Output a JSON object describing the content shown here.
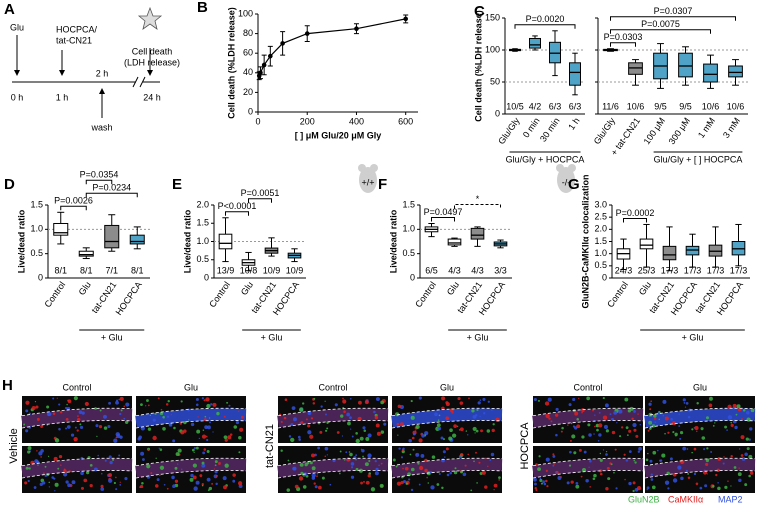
{
  "diagram": {
    "panel": "A",
    "glu": "Glu",
    "treatment": [
      "HOCPCA/",
      "tat-CN21"
    ],
    "wash": "wash",
    "outcome": [
      "Cell death",
      "(LDH release)"
    ],
    "times": [
      "0 h",
      "1 h",
      "2 h",
      "24 h"
    ]
  },
  "chart_data": [
    {
      "type": "line",
      "panel": "B",
      "xlabel": "[ ] μM Glu/20 μM Gly",
      "ylabel": "Cell death (%LDH release)",
      "x": [
        5,
        10,
        25,
        50,
        100,
        200,
        400,
        600
      ],
      "values": [
        37,
        40,
        48,
        57,
        70,
        80,
        85,
        95
      ],
      "errors": [
        4,
        6,
        10,
        10,
        12,
        8,
        5,
        4
      ],
      "color": "#000000",
      "xlim": [
        0,
        650
      ],
      "xticks": [
        0,
        200,
        400,
        600
      ],
      "ylim": [
        0,
        100
      ],
      "yticks": [
        0,
        20,
        40,
        60,
        80,
        100
      ]
    },
    {
      "type": "box",
      "panel": "C",
      "ylabel": "Cell death (%LDH release)",
      "categories": [
        "Glu/Gly",
        "0 min",
        "30 min",
        "1 h"
      ],
      "n_labels": [
        "10/5",
        "4/2",
        "6/3",
        "6/3"
      ],
      "boxes": [
        {
          "min": 98,
          "q1": 99,
          "median": 100,
          "q3": 101,
          "max": 102
        },
        {
          "min": 100,
          "q1": 103,
          "median": 108,
          "q3": 118,
          "max": 122
        },
        {
          "min": 60,
          "q1": 80,
          "median": 95,
          "q3": 112,
          "max": 130
        },
        {
          "min": 30,
          "q1": 45,
          "median": 65,
          "q3": 80,
          "max": 95
        }
      ],
      "box_colors": [
        "#ffffff",
        "#4fa3c7",
        "#4fa3c7",
        "#4fa3c7"
      ],
      "ylim": [
        0,
        150
      ],
      "yticks": [
        0,
        50,
        100,
        150
      ],
      "ref_lines": [
        50,
        100
      ],
      "tick_labels": true,
      "group_label": "Glu/Gly + HOCPCA",
      "group_span": [
        0,
        3
      ],
      "annotations": [
        {
          "label": "P=0.0020",
          "pair": [
            0,
            3
          ],
          "dashed": false
        }
      ]
    },
    {
      "type": "box",
      "categories": [
        "Glu/Gly",
        "+ tat-CN21",
        "100 μM",
        "300 μM",
        "1 mM",
        "3 mM"
      ],
      "n_labels": [
        "11/6",
        "10/6",
        "9/5",
        "9/5",
        "10/6",
        "10/6"
      ],
      "boxes": [
        {
          "min": 98,
          "q1": 99,
          "median": 100,
          "q3": 101,
          "max": 102
        },
        {
          "min": 45,
          "q1": 62,
          "median": 72,
          "q3": 80,
          "max": 85
        },
        {
          "min": 40,
          "q1": 55,
          "median": 75,
          "q3": 95,
          "max": 110
        },
        {
          "min": 45,
          "q1": 58,
          "median": 75,
          "q3": 95,
          "max": 105
        },
        {
          "min": 40,
          "q1": 50,
          "median": 62,
          "q3": 78,
          "max": 92
        },
        {
          "min": 45,
          "q1": 58,
          "median": 65,
          "q3": 75,
          "max": 85
        }
      ],
      "box_colors": [
        "#ffffff",
        "#8c8c8c",
        "#4fa3c7",
        "#4fa3c7",
        "#4fa3c7",
        "#4fa3c7"
      ],
      "ylim": [
        0,
        150
      ],
      "yticks": [
        0,
        50,
        100,
        150
      ],
      "ref_lines": [
        50,
        100
      ],
      "tick_labels": false,
      "group_label": "Glu/Gly + [ ] HOCPCA",
      "group_span": [
        2,
        5
      ],
      "annotations": [
        {
          "label": "P=0.0303",
          "pair": [
            0,
            1
          ],
          "dashed": false
        },
        {
          "label": "P=0.0075",
          "pair": [
            0,
            4
          ],
          "dashed": false
        },
        {
          "label": "P=0.0307",
          "pair": [
            0,
            5
          ],
          "dashed": false
        }
      ]
    },
    {
      "type": "box",
      "panel": "D",
      "ylabel": "Live/dead ratio",
      "categories": [
        "Control",
        "Glu",
        "tat-CN21",
        "HOCPCA"
      ],
      "n_labels": [
        "8/1",
        "8/1",
        "7/1",
        "8/1"
      ],
      "boxes": [
        {
          "min": 0.7,
          "q1": 0.88,
          "median": 0.93,
          "q3": 1.12,
          "max": 1.35
        },
        {
          "min": 0.4,
          "q1": 0.45,
          "median": 0.48,
          "q3": 0.55,
          "max": 0.62
        },
        {
          "min": 0.55,
          "q1": 0.62,
          "median": 0.75,
          "q3": 1.08,
          "max": 1.3
        },
        {
          "min": 0.6,
          "q1": 0.7,
          "median": 0.75,
          "q3": 0.88,
          "max": 1.05
        }
      ],
      "box_colors": [
        "#ffffff",
        "#ffffff",
        "#8c8c8c",
        "#4fa3c7"
      ],
      "ylim": [
        0,
        1.5
      ],
      "yticks": [
        0,
        0.5,
        {
          "value": 1,
          "label": "1.0"
        },
        1.5
      ],
      "ref_lines": [
        1
      ],
      "tick_labels": true,
      "group_label": "+ Glu",
      "group_span": [
        1,
        3
      ],
      "annotations": [
        {
          "label": "P=0.0026",
          "pair": [
            0,
            1
          ],
          "dashed": false
        },
        {
          "label": "P=0.0234",
          "pair": [
            1,
            3
          ],
          "dashed": false
        },
        {
          "label": "P=0.0354",
          "pair": [
            1,
            2
          ],
          "dashed": false
        }
      ]
    },
    {
      "type": "box",
      "panel": "E",
      "ylabel": "Live/dead ratio",
      "genotype": "+/+",
      "categories": [
        "Control",
        "Glu",
        "tat-CN21",
        "HOCPCA"
      ],
      "n_labels": [
        "13/9",
        "10/8",
        "10/9",
        "10/9"
      ],
      "boxes": [
        {
          "min": 0.45,
          "q1": 0.8,
          "median": 0.95,
          "q3": 1.2,
          "max": 1.65
        },
        {
          "min": 0.2,
          "q1": 0.35,
          "median": 0.42,
          "q3": 0.5,
          "max": 0.7
        },
        {
          "min": 0.6,
          "q1": 0.68,
          "median": 0.75,
          "q3": 0.82,
          "max": 1.1
        },
        {
          "min": 0.45,
          "q1": 0.55,
          "median": 0.62,
          "q3": 0.68,
          "max": 0.8
        }
      ],
      "box_colors": [
        "#ffffff",
        "#ffffff",
        "#8c8c8c",
        "#4fa3c7"
      ],
      "ylim": [
        0,
        2
      ],
      "yticks": [
        0,
        0.5,
        {
          "value": 1,
          "label": "1.0"
        },
        1.5,
        {
          "value": 2,
          "label": "2.0"
        }
      ],
      "ref_lines": [
        1
      ],
      "tick_labels": true,
      "group_label": "+ Glu",
      "group_span": [
        1,
        3
      ],
      "annotations": [
        {
          "label": "P<0.0001",
          "pair": [
            0,
            1
          ],
          "dashed": false
        },
        {
          "label": "P=0.0051",
          "pair": [
            1,
            2
          ],
          "dashed": false
        }
      ]
    },
    {
      "type": "box",
      "panel": "F",
      "ylabel": "Live/dead ratio",
      "genotype": "-/-",
      "categories": [
        "Control",
        "Glu",
        "tat-CN21",
        "HOCPCA"
      ],
      "n_labels": [
        "6/5",
        "4/3",
        "4/3",
        "3/3"
      ],
      "boxes": [
        {
          "min": 0.85,
          "q1": 0.95,
          "median": 1,
          "q3": 1.05,
          "max": 1.12
        },
        {
          "min": 0.65,
          "q1": 0.68,
          "median": 0.72,
          "q3": 0.8,
          "max": 0.82
        },
        {
          "min": 0.65,
          "q1": 0.8,
          "median": 0.88,
          "q3": 1.02,
          "max": 1.05
        },
        {
          "min": 0.62,
          "q1": 0.66,
          "median": 0.7,
          "q3": 0.74,
          "max": 0.78
        }
      ],
      "box_colors": [
        "#ffffff",
        "#ffffff",
        "#8c8c8c",
        "#4fa3c7"
      ],
      "ylim": [
        0,
        1.5
      ],
      "yticks": [
        0,
        0.5,
        {
          "value": 1,
          "label": "1.0"
        },
        1.5
      ],
      "ref_lines": [
        1
      ],
      "tick_labels": true,
      "group_label": "+ Glu",
      "group_span": [
        1,
        3
      ],
      "annotations": [
        {
          "label": "P=0.0497",
          "pair": [
            0,
            1
          ],
          "dashed": false
        },
        {
          "label": "*",
          "pair": [
            1,
            3
          ],
          "dashed": true
        }
      ]
    },
    {
      "type": "box",
      "panel": "G",
      "ylabel": "GluN2B-CaMKIIα colocalization",
      "categories": [
        "Control",
        "Glu",
        "tat-CN21",
        "HOCPCA",
        "tat-CN21",
        "HOCPCA"
      ],
      "n_labels": [
        "24/3",
        "25/3",
        "17/3",
        "17/3",
        "17/3",
        "17/3"
      ],
      "boxes": [
        {
          "min": 0.35,
          "q1": 0.78,
          "median": 1,
          "q3": 1.2,
          "max": 1.6
        },
        {
          "min": 0.45,
          "q1": 1.2,
          "median": 1.35,
          "q3": 1.6,
          "max": 2.2
        },
        {
          "min": 0.3,
          "q1": 0.75,
          "median": 0.95,
          "q3": 1.3,
          "max": 2.1
        },
        {
          "min": 0.45,
          "q1": 0.95,
          "median": 1.15,
          "q3": 1.3,
          "max": 1.8
        },
        {
          "min": 0.45,
          "q1": 0.9,
          "median": 1.1,
          "q3": 1.35,
          "max": 2.1
        },
        {
          "min": 0.5,
          "q1": 0.95,
          "median": 1.2,
          "q3": 1.5,
          "max": 2.2
        }
      ],
      "box_colors": [
        "#ffffff",
        "#ffffff",
        "#8c8c8c",
        "#4fa3c7",
        "#8c8c8c",
        "#4fa3c7"
      ],
      "ylim": [
        0,
        3
      ],
      "yticks": [
        0,
        0.5,
        {
          "value": 1,
          "label": "1.0"
        },
        1.5,
        {
          "value": 2,
          "label": "2.0"
        },
        2.5,
        {
          "value": 3,
          "label": "3.0"
        }
      ],
      "ref_lines": [],
      "tick_labels": true,
      "group_label": "+ Glu",
      "group_span": [
        1,
        5
      ],
      "annotations": [
        {
          "label": "P=0.0002",
          "pair": [
            0,
            1
          ],
          "dashed": false
        }
      ]
    }
  ],
  "images": {
    "panel": "H",
    "groups": [
      {
        "row_label": "Vehicle",
        "column_labels": [
          "Control",
          "Glu"
        ]
      },
      {
        "row_label": "tat-CN21",
        "column_labels": [
          "Control",
          "Glu"
        ]
      },
      {
        "row_label": "HOCPCA",
        "column_labels": [
          "Control",
          "Glu"
        ]
      }
    ],
    "legend": [
      {
        "name": "GluN2B",
        "color": "#3cb043"
      },
      {
        "name": "CaMKIIα",
        "color": "#e02020"
      },
      {
        "name": "MAP2",
        "color": "#3050e0"
      }
    ]
  }
}
